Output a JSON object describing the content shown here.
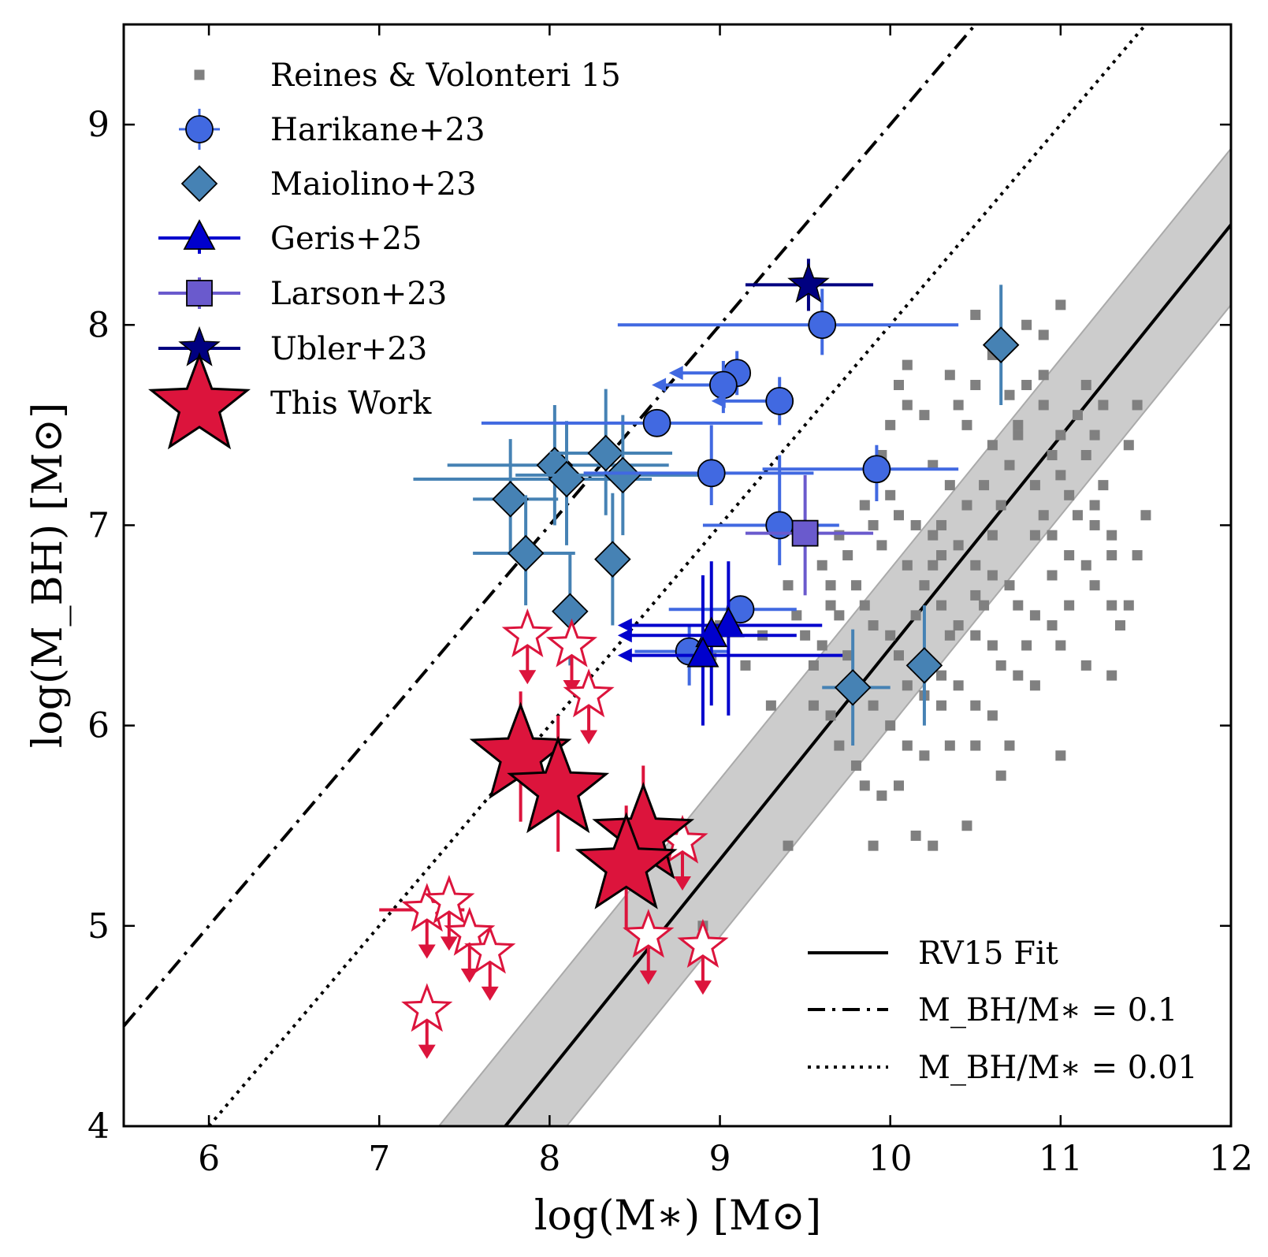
{
  "chart_data": {
    "type": "scatter",
    "xlabel": "log(M∗) [M⊙]",
    "ylabel": "log(M_BH) [M⊙]",
    "xlim": [
      5.5,
      12
    ],
    "ylim": [
      4,
      9.5
    ],
    "xticks": [
      6,
      7,
      8,
      9,
      10,
      11,
      12
    ],
    "yticks": [
      4,
      5,
      6,
      7,
      8,
      9
    ],
    "grid": false,
    "legend_main": "top-left",
    "legend_lines": "bottom-right",
    "colors": {
      "rv15": "#808080",
      "harikane": "#4169E1",
      "maiolino": "#4682B4",
      "geris": "#0000CD",
      "larson": "#6A5ACD",
      "ubler": "#000080",
      "this_work": "#DC143C",
      "band": "#CCCCCC"
    },
    "lines": [
      {
        "name": "RV15 Fit",
        "style": "solid",
        "x": [
          7.74,
          12
        ],
        "y": [
          4,
          8.5
        ]
      },
      {
        "name": "M_BH/M∗ = 0.1",
        "style": "dashdot",
        "x": [
          5.5,
          10.5
        ],
        "y": [
          4.5,
          9.5
        ]
      },
      {
        "name": "M_BH/M∗ = 0.01",
        "style": "dotted",
        "x": [
          6,
          11.5
        ],
        "y": [
          4,
          9.5
        ]
      }
    ],
    "band": {
      "upper": {
        "x": [
          7.35,
          12
        ],
        "y": [
          4,
          8.88
        ]
      },
      "lower": {
        "x": [
          8.1,
          12
        ],
        "y": [
          4,
          8.1
        ]
      }
    },
    "series": [
      {
        "name": "Reines & Volonteri 15",
        "marker": "square",
        "points": [
          [
            10.5,
            8.05
          ],
          [
            11.0,
            8.1
          ],
          [
            10.8,
            8.0
          ],
          [
            10.1,
            7.8
          ],
          [
            10.35,
            7.75
          ],
          [
            10.5,
            7.7
          ],
          [
            10.7,
            7.65
          ],
          [
            10.8,
            7.7
          ],
          [
            10.9,
            7.6
          ],
          [
            11.1,
            7.55
          ],
          [
            11.15,
            7.7
          ],
          [
            11.2,
            7.45
          ],
          [
            11.25,
            7.6
          ],
          [
            10.05,
            7.7
          ],
          [
            10.1,
            7.6
          ],
          [
            10.2,
            7.55
          ],
          [
            10.4,
            7.6
          ],
          [
            10.45,
            7.5
          ],
          [
            10.6,
            7.4
          ],
          [
            10.7,
            7.3
          ],
          [
            10.75,
            7.45
          ],
          [
            10.95,
            7.35
          ],
          [
            11.0,
            7.25
          ],
          [
            11.05,
            7.15
          ],
          [
            11.1,
            7.05
          ],
          [
            11.2,
            7.0
          ],
          [
            11.25,
            7.2
          ],
          [
            11.3,
            6.95
          ],
          [
            10.0,
            7.5
          ],
          [
            9.95,
            7.35
          ],
          [
            10.25,
            7.3
          ],
          [
            10.35,
            7.2
          ],
          [
            10.55,
            7.2
          ],
          [
            10.65,
            7.1
          ],
          [
            10.85,
            7.2
          ],
          [
            10.9,
            7.05
          ],
          [
            10.95,
            6.95
          ],
          [
            11.05,
            6.85
          ],
          [
            11.15,
            6.8
          ],
          [
            11.2,
            6.7
          ],
          [
            11.3,
            6.6
          ],
          [
            11.4,
            7.4
          ],
          [
            11.5,
            7.05
          ],
          [
            11.45,
            6.85
          ],
          [
            11.35,
            6.5
          ],
          [
            10.0,
            7.15
          ],
          [
            10.05,
            7.05
          ],
          [
            10.15,
            7.0
          ],
          [
            10.25,
            6.95
          ],
          [
            10.3,
            6.85
          ],
          [
            10.4,
            6.9
          ],
          [
            10.5,
            6.8
          ],
          [
            10.6,
            6.75
          ],
          [
            10.7,
            6.7
          ],
          [
            10.75,
            6.6
          ],
          [
            10.85,
            6.55
          ],
          [
            10.95,
            6.5
          ],
          [
            11.0,
            6.4
          ],
          [
            9.85,
            7.1
          ],
          [
            9.9,
            7.0
          ],
          [
            9.95,
            6.9
          ],
          [
            10.1,
            6.8
          ],
          [
            10.2,
            6.7
          ],
          [
            10.3,
            6.6
          ],
          [
            10.4,
            6.5
          ],
          [
            10.5,
            6.45
          ],
          [
            10.6,
            6.4
          ],
          [
            10.65,
            6.3
          ],
          [
            10.75,
            6.25
          ],
          [
            10.85,
            6.2
          ],
          [
            9.7,
            6.95
          ],
          [
            9.75,
            6.85
          ],
          [
            9.8,
            6.7
          ],
          [
            9.85,
            6.6
          ],
          [
            9.9,
            6.5
          ],
          [
            10.0,
            6.45
          ],
          [
            10.05,
            6.35
          ],
          [
            10.15,
            6.3
          ],
          [
            10.3,
            6.25
          ],
          [
            10.4,
            6.2
          ],
          [
            10.5,
            6.1
          ],
          [
            10.6,
            6.05
          ],
          [
            9.5,
            6.95
          ],
          [
            9.6,
            6.8
          ],
          [
            9.65,
            6.7
          ],
          [
            9.7,
            6.55
          ],
          [
            9.6,
            6.4
          ],
          [
            9.55,
            6.3
          ],
          [
            9.75,
            6.35
          ],
          [
            9.8,
            6.2
          ],
          [
            9.9,
            6.1
          ],
          [
            10.0,
            6.0
          ],
          [
            10.1,
            5.9
          ],
          [
            10.2,
            5.85
          ],
          [
            10.35,
            5.9
          ],
          [
            10.5,
            5.9
          ],
          [
            10.3,
            6.1
          ],
          [
            10.2,
            6.15
          ],
          [
            9.4,
            6.7
          ],
          [
            9.45,
            6.55
          ],
          [
            9.5,
            6.45
          ],
          [
            9.55,
            6.1
          ],
          [
            9.65,
            6.05
          ],
          [
            9.7,
            5.9
          ],
          [
            9.8,
            5.8
          ],
          [
            9.85,
            5.7
          ],
          [
            9.95,
            5.65
          ],
          [
            10.05,
            5.7
          ],
          [
            10.15,
            5.45
          ],
          [
            10.25,
            5.4
          ],
          [
            10.45,
            5.5
          ],
          [
            9.9,
            5.4
          ],
          [
            9.4,
            5.4
          ],
          [
            10.7,
            5.9
          ],
          [
            10.65,
            5.75
          ],
          [
            11.0,
            5.85
          ],
          [
            9.15,
            6.3
          ],
          [
            9.3,
            6.1
          ],
          [
            8.95,
            6.35
          ],
          [
            9.0,
            6.5
          ],
          [
            9.25,
            6.45
          ],
          [
            8.9,
            5.0
          ],
          [
            10.6,
            7.85
          ],
          [
            10.9,
            7.95
          ],
          [
            10.75,
            7.5
          ],
          [
            11.0,
            7.45
          ],
          [
            11.3,
            6.85
          ],
          [
            10.55,
            6.6
          ],
          [
            10.85,
            6.95
          ],
          [
            10.45,
            7.1
          ],
          [
            11.15,
            6.3
          ],
          [
            10.3,
            7.0
          ],
          [
            10.15,
            6.55
          ],
          [
            10.6,
            6.95
          ],
          [
            10.95,
            6.75
          ],
          [
            10.5,
            6.65
          ],
          [
            11.05,
            6.6
          ],
          [
            10.8,
            6.4
          ],
          [
            10.35,
            6.45
          ],
          [
            11.3,
            6.25
          ],
          [
            10.25,
            6.8
          ],
          [
            11.15,
            7.35
          ],
          [
            10.9,
            7.75
          ],
          [
            11.4,
            6.6
          ],
          [
            11.2,
            7.1
          ],
          [
            10.1,
            6.2
          ],
          [
            9.65,
            6.6
          ],
          [
            11.45,
            7.6
          ]
        ]
      },
      {
        "name": "Harikane+23",
        "marker": "circle",
        "points": [
          {
            "x": 9.6,
            "y": 8.0,
            "xlo": 8.4,
            "xhi": 10.4,
            "ylo": 7.85,
            "yhi": 8.18
          },
          {
            "x": 9.1,
            "y": 7.76,
            "ylo": 7.65,
            "yhi": 7.87,
            "arrow": "left",
            "xa": 8.7
          },
          {
            "x": 9.02,
            "y": 7.7,
            "ylo": 7.56,
            "yhi": 7.82,
            "arrow": "left",
            "xa": 8.6
          },
          {
            "x": 9.35,
            "y": 7.62,
            "ylo": 7.5,
            "yhi": 7.74,
            "arrow": "left",
            "xa": 8.95
          },
          {
            "x": 8.63,
            "y": 7.51,
            "xlo": 7.6,
            "xhi": 9.25
          },
          {
            "x": 8.95,
            "y": 7.26,
            "xlo": 8.2,
            "xhi": 9.55,
            "ylo": 7.1,
            "yhi": 7.5
          },
          {
            "x": 9.92,
            "y": 7.28,
            "xlo": 9.25,
            "xhi": 10.4,
            "ylo": 7.12,
            "yhi": 7.4
          },
          {
            "x": 9.35,
            "y": 7.0,
            "xlo": 8.9,
            "xhi": 9.7,
            "ylo": 6.8,
            "yhi": 7.35
          },
          {
            "x": 9.12,
            "y": 6.58,
            "xlo": 8.7,
            "xhi": 9.45
          },
          {
            "x": 8.82,
            "y": 6.37,
            "xlo": 8.5,
            "xhi": 9.05,
            "ylo": 6.2,
            "yhi": 6.5
          }
        ]
      },
      {
        "name": "Maiolino+23",
        "marker": "diamond",
        "points": [
          {
            "x": 10.65,
            "y": 7.9,
            "ylo": 7.6,
            "yhi": 8.2
          },
          {
            "x": 8.03,
            "y": 7.3,
            "xlo": 7.4,
            "xhi": 8.7,
            "ylo": 7.0,
            "yhi": 7.6
          },
          {
            "x": 8.33,
            "y": 7.36,
            "xlo": 8.0,
            "xhi": 8.72,
            "ylo": 7.05,
            "yhi": 7.68
          },
          {
            "x": 8.1,
            "y": 7.23,
            "xlo": 7.2,
            "xhi": 8.6,
            "ylo": 6.9,
            "yhi": 7.52
          },
          {
            "x": 8.43,
            "y": 7.25,
            "xlo": 7.8,
            "xhi": 9.0,
            "ylo": 6.95,
            "yhi": 7.55
          },
          {
            "x": 7.77,
            "y": 7.13,
            "xlo": 7.55,
            "xhi": 8.05,
            "ylo": 6.85,
            "yhi": 7.43
          },
          {
            "x": 7.86,
            "y": 6.86,
            "xlo": 7.55,
            "xhi": 8.15,
            "ylo": 6.6,
            "yhi": 7.15
          },
          {
            "x": 8.37,
            "y": 6.83,
            "ylo": 6.5,
            "yhi": 7.16
          },
          {
            "x": 8.12,
            "y": 6.57,
            "ylo": 6.3,
            "yhi": 6.86
          },
          {
            "x": 10.2,
            "y": 6.3,
            "ylo": 6.0,
            "yhi": 6.6
          },
          {
            "x": 9.78,
            "y": 6.19,
            "xlo": 9.6,
            "xhi": 10.0,
            "ylo": 5.9,
            "yhi": 6.48
          }
        ]
      },
      {
        "name": "Geris+25",
        "marker": "triangle",
        "points": [
          {
            "x": 9.05,
            "y": 6.5,
            "ylo": 6.05,
            "yhi": 6.82,
            "arrow": "left",
            "xa": 8.4,
            "xhi": 9.6
          },
          {
            "x": 8.95,
            "y": 6.45,
            "ylo": 6.1,
            "yhi": 6.82,
            "arrow": "left",
            "xa": 8.4,
            "xhi": 9.45
          },
          {
            "x": 8.9,
            "y": 6.35,
            "ylo": 6.0,
            "yhi": 6.75,
            "arrow": "left",
            "xa": 8.4,
            "xhi": 9.72
          }
        ]
      },
      {
        "name": "Larson+23",
        "marker": "square-big",
        "points": [
          {
            "x": 9.5,
            "y": 6.96,
            "xlo": 9.15,
            "xhi": 9.9,
            "ylo": 6.65,
            "yhi": 7.25
          }
        ]
      },
      {
        "name": "Ubler+23",
        "marker": "star-small",
        "points": [
          {
            "x": 9.52,
            "y": 8.2,
            "xlo": 9.15,
            "xhi": 9.9,
            "ylo": 8.07,
            "yhi": 8.33
          }
        ]
      },
      {
        "name": "This Work",
        "marker": "star-big",
        "points": [
          {
            "x": 7.83,
            "y": 5.85,
            "ylo": 5.52,
            "yhi": 6.17
          },
          {
            "x": 8.05,
            "y": 5.68,
            "ylo": 5.37,
            "yhi": 6.05
          },
          {
            "x": 8.55,
            "y": 5.45,
            "ylo": 5.15,
            "yhi": 5.8
          },
          {
            "x": 8.45,
            "y": 5.3,
            "ylo": 4.98,
            "yhi": 5.6
          }
        ]
      },
      {
        "name": "This Work (upper limits)",
        "marker": "star-open",
        "points": [
          {
            "x": 7.87,
            "y": 6.45
          },
          {
            "x": 8.13,
            "y": 6.4
          },
          {
            "x": 8.23,
            "y": 6.15
          },
          {
            "x": 7.28,
            "y": 5.08,
            "xlo": 7.0,
            "xhi": 7.5
          },
          {
            "x": 7.41,
            "y": 5.12
          },
          {
            "x": 7.53,
            "y": 4.96
          },
          {
            "x": 7.65,
            "y": 4.87
          },
          {
            "x": 7.28,
            "y": 4.58
          },
          {
            "x": 8.58,
            "y": 4.95
          },
          {
            "x": 8.78,
            "y": 5.42
          },
          {
            "x": 8.9,
            "y": 4.9
          }
        ]
      }
    ]
  },
  "legend": {
    "items": [
      {
        "label": "Reines & Volonteri 15"
      },
      {
        "label": "Harikane+23"
      },
      {
        "label": "Maiolino+23"
      },
      {
        "label": "Geris+25"
      },
      {
        "label": "Larson+23"
      },
      {
        "label": "Ubler+23"
      },
      {
        "label": "This Work"
      }
    ],
    "line_items": [
      {
        "label": "RV15 Fit"
      },
      {
        "label": "M_BH/M∗ = 0.1"
      },
      {
        "label": "M_BH/M∗ = 0.01"
      }
    ]
  }
}
